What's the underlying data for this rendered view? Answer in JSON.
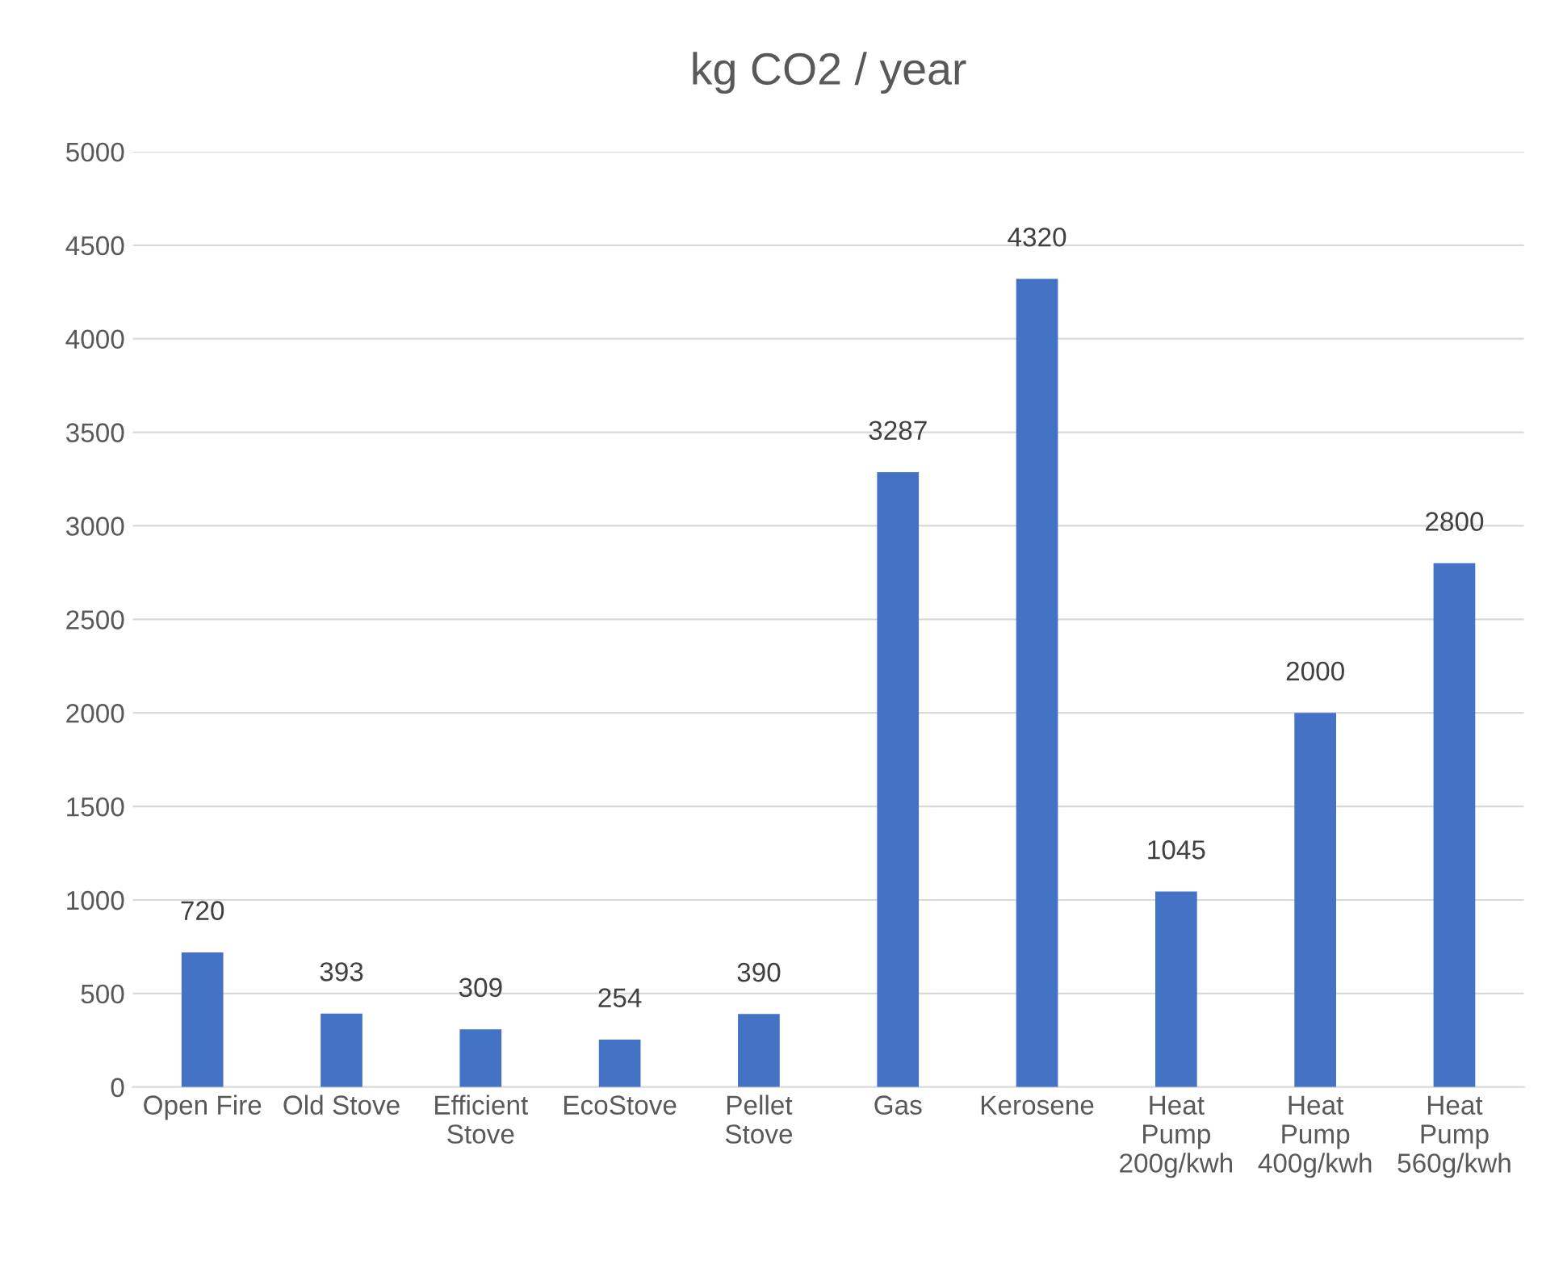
{
  "chart_data": {
    "type": "bar",
    "title": "kg CO2 / year",
    "categories": [
      "Open Fire",
      "Old Stove",
      "Efficient\nStove",
      "EcoStove",
      "Pellet\nStove",
      "Gas",
      "Kerosene",
      "Heat\nPump\n200g/kwh",
      "Heat\nPump\n400g/kwh",
      "Heat\nPump\n560g/kwh"
    ],
    "values": [
      720,
      393,
      309,
      254,
      390,
      3287,
      4320,
      1045,
      2000,
      2800
    ],
    "color": "#4472c4",
    "ylim": [
      0,
      5000
    ],
    "yticks": [
      0,
      500,
      1000,
      1500,
      2000,
      2500,
      3000,
      3500,
      4000,
      4500,
      5000
    ],
    "grid": "y",
    "data_labels": true,
    "legend": false
  }
}
